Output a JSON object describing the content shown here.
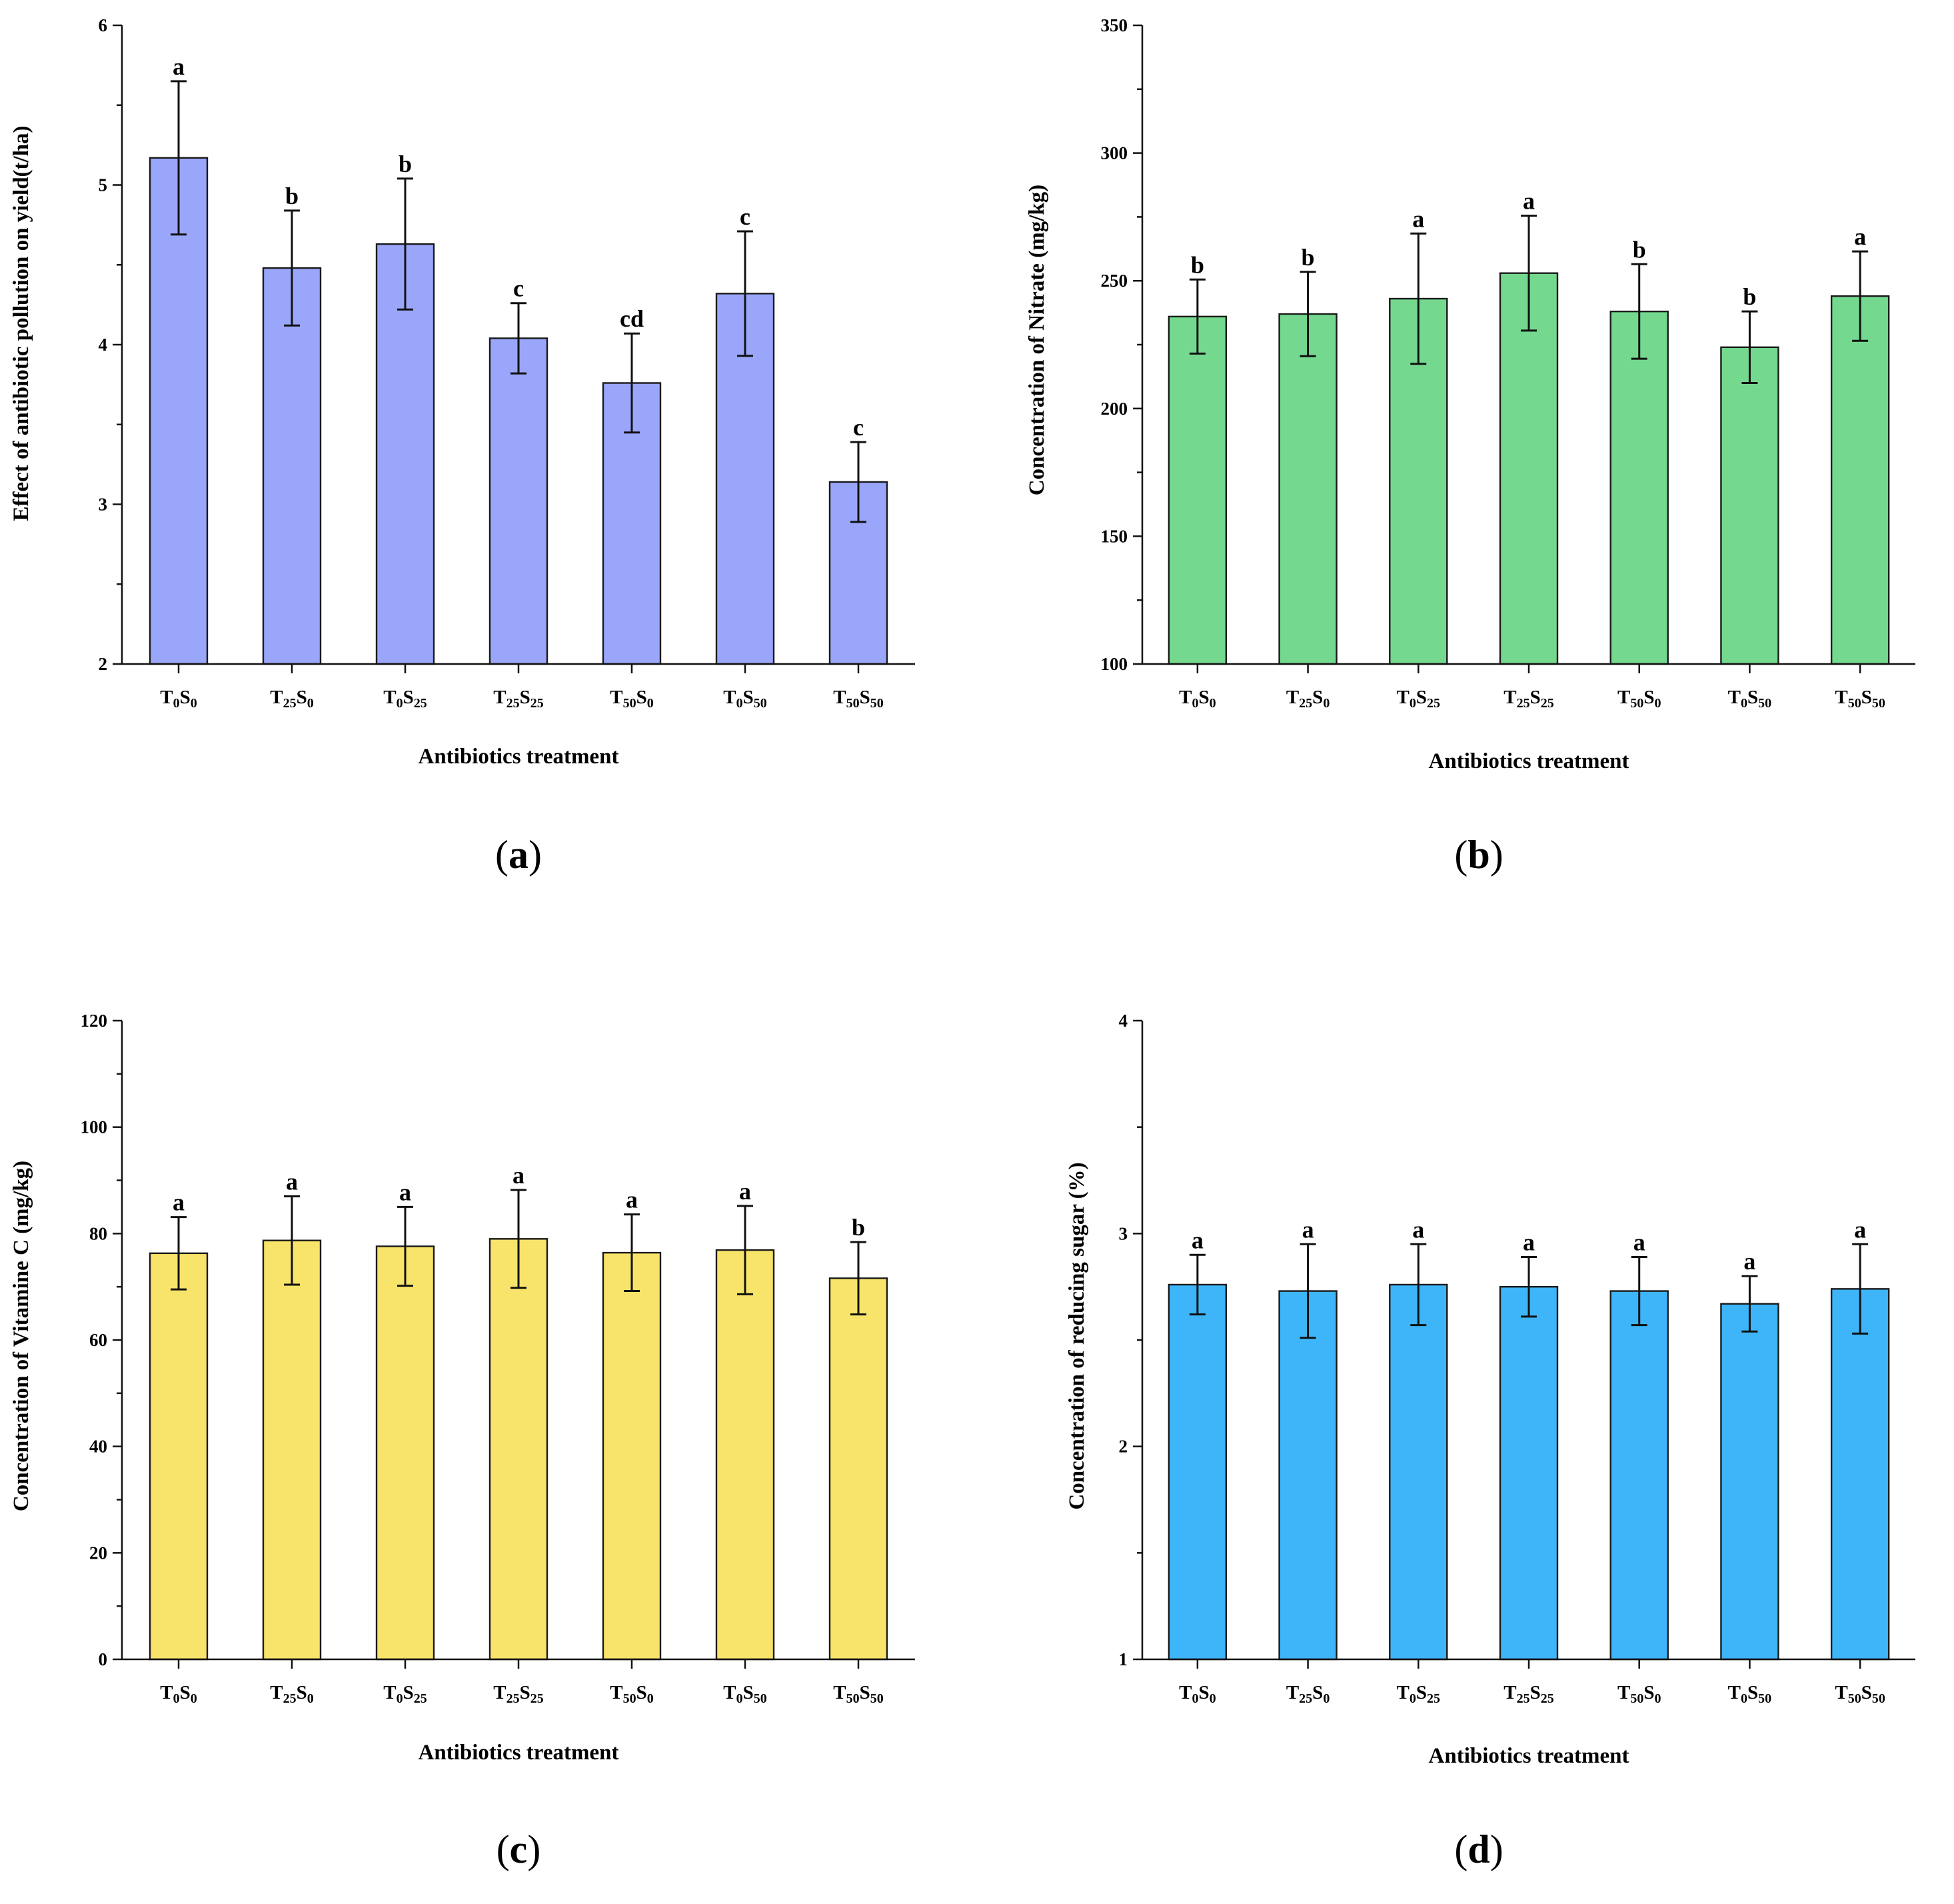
{
  "chart_data": [
    {
      "type": "bar",
      "panel_label": "a",
      "color": "#9aa6fa",
      "xlabel": "Antibiotics treatment",
      "ylabel": "Effect of antibiotic pollution on yield(t/ha)",
      "ylim": [
        2,
        6
      ],
      "yticks": [
        2,
        3,
        4,
        5,
        6
      ],
      "categories": [
        {
          "t": "T",
          "ts": "0",
          "s": "S",
          "ss": "0"
        },
        {
          "t": "T",
          "ts": "25",
          "s": "S",
          "ss": "0"
        },
        {
          "t": "T",
          "ts": "0",
          "s": "S",
          "ss": "25"
        },
        {
          "t": "T",
          "ts": "25",
          "s": "S",
          "ss": "25"
        },
        {
          "t": "T",
          "ts": "50",
          "s": "S",
          "ss": "0"
        },
        {
          "t": "T",
          "ts": "0",
          "s": "S",
          "ss": "50"
        },
        {
          "t": "T",
          "ts": "50",
          "s": "S",
          "ss": "50"
        }
      ],
      "values": [
        5.17,
        4.48,
        4.63,
        4.04,
        3.76,
        4.32,
        3.14
      ],
      "errors": [
        0.48,
        0.36,
        0.41,
        0.22,
        0.31,
        0.39,
        0.25
      ],
      "letters": [
        "a",
        "b",
        "b",
        "c",
        "cd",
        "c",
        "c"
      ]
    },
    {
      "type": "bar",
      "panel_label": "b",
      "color": "#74d98e",
      "xlabel": "Antibiotics treatment",
      "ylabel": "Concentration of Nitrate (mg/kg)",
      "ylim": [
        100,
        350
      ],
      "yticks": [
        100,
        150,
        200,
        250,
        300,
        350
      ],
      "categories": [
        {
          "t": "T",
          "ts": "0",
          "s": "S",
          "ss": "0"
        },
        {
          "t": "T",
          "ts": "25",
          "s": "S",
          "ss": "0"
        },
        {
          "t": "T",
          "ts": "0",
          "s": "S",
          "ss": "25"
        },
        {
          "t": "T",
          "ts": "25",
          "s": "S",
          "ss": "25"
        },
        {
          "t": "T",
          "ts": "50",
          "s": "S",
          "ss": "0"
        },
        {
          "t": "T",
          "ts": "0",
          "s": "S",
          "ss": "50"
        },
        {
          "t": "T",
          "ts": "50",
          "s": "S",
          "ss": "50"
        }
      ],
      "values": [
        236,
        237,
        243,
        253,
        238,
        224,
        244
      ],
      "errors": [
        14.5,
        16.5,
        25.5,
        22.5,
        18.5,
        14.0,
        17.5
      ],
      "letters": [
        "b",
        "b",
        "a",
        "a",
        "b",
        "b",
        "a"
      ]
    },
    {
      "type": "bar",
      "panel_label": "c",
      "color": "#f8e46a",
      "xlabel": "Antibiotics treatment",
      "ylabel": "Concentration of Vitamine C (mg/kg)",
      "ylim": [
        0,
        120
      ],
      "yticks": [
        0,
        20,
        40,
        60,
        80,
        100,
        120
      ],
      "categories": [
        {
          "t": "T",
          "ts": "0",
          "s": "S",
          "ss": "0"
        },
        {
          "t": "T",
          "ts": "25",
          "s": "S",
          "ss": "0"
        },
        {
          "t": "T",
          "ts": "0",
          "s": "S",
          "ss": "25"
        },
        {
          "t": "T",
          "ts": "25",
          "s": "S",
          "ss": "25"
        },
        {
          "t": "T",
          "ts": "50",
          "s": "S",
          "ss": "0"
        },
        {
          "t": "T",
          "ts": "0",
          "s": "S",
          "ss": "50"
        },
        {
          "t": "T",
          "ts": "50",
          "s": "S",
          "ss": "50"
        }
      ],
      "values": [
        76.3,
        78.7,
        77.6,
        79.0,
        76.4,
        76.9,
        71.6
      ],
      "errors": [
        6.8,
        8.3,
        7.4,
        9.2,
        7.2,
        8.3,
        6.8
      ],
      "letters": [
        "a",
        "a",
        "a",
        "a",
        "a",
        "a",
        "b"
      ]
    },
    {
      "type": "bar",
      "panel_label": "d",
      "color": "#3db5f8",
      "xlabel": "Antibiotics treatment",
      "ylabel": "Concentration of reducing sugar (%)",
      "ylim": [
        1,
        4
      ],
      "yticks": [
        1,
        2,
        3,
        4
      ],
      "categories": [
        {
          "t": "T",
          "ts": "0",
          "s": "S",
          "ss": "0"
        },
        {
          "t": "T",
          "ts": "25",
          "s": "S",
          "ss": "0"
        },
        {
          "t": "T",
          "ts": "0",
          "s": "S",
          "ss": "25"
        },
        {
          "t": "T",
          "ts": "25",
          "s": "S",
          "ss": "25"
        },
        {
          "t": "T",
          "ts": "50",
          "s": "S",
          "ss": "0"
        },
        {
          "t": "T",
          "ts": "0",
          "s": "S",
          "ss": "50"
        },
        {
          "t": "T",
          "ts": "50",
          "s": "S",
          "ss": "50"
        }
      ],
      "values": [
        2.76,
        2.73,
        2.76,
        2.75,
        2.73,
        2.67,
        2.74
      ],
      "errors": [
        0.14,
        0.22,
        0.19,
        0.14,
        0.16,
        0.13,
        0.21
      ],
      "letters": [
        "a",
        "a",
        "a",
        "a",
        "a",
        "a",
        "a"
      ]
    }
  ]
}
